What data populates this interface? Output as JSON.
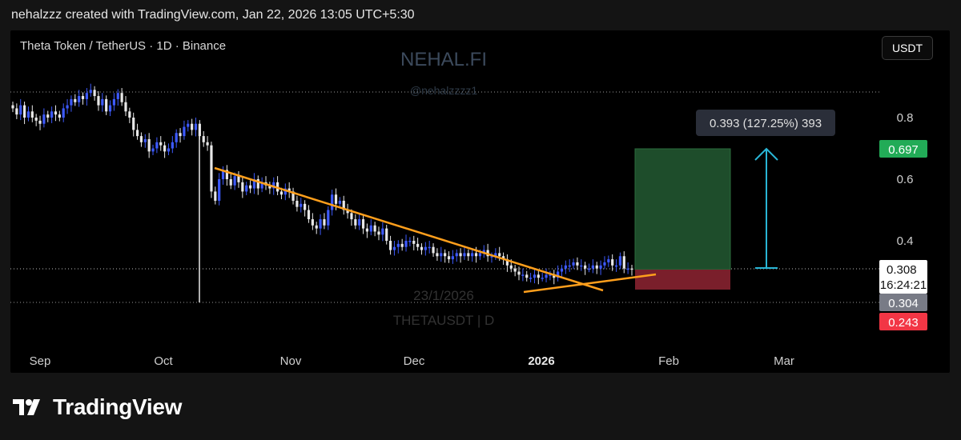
{
  "header": {
    "attribution": "nehalzzz created with TradingView.com, Jan 22, 2026 13:05 UTC+5:30"
  },
  "brand": {
    "name": "TradingView",
    "logo_icon": "tradingview-logo-icon"
  },
  "toolbar": {
    "currency_label": "USDT"
  },
  "colors": {
    "background": "#000000",
    "candle_up": "#3d5afe",
    "candle_down": "#e8e8e8",
    "trendline": "#ff9f1c",
    "profit_zone": "#1e4d2b",
    "loss_zone": "#7a1f2b",
    "target_arrow": "#29b6d6",
    "label_green": "#22ab57",
    "label_red": "#f23645",
    "label_gray": "#787b86"
  },
  "chart_data": {
    "type": "candlestick",
    "title": "Theta Token / TetherUS · 1D · Binance",
    "symbol": "THETAUSDT",
    "interval": "D",
    "watermark": {
      "title": "NEHAL.FI",
      "subtitle": "@nehalzzzz1",
      "date": "23/1/2026",
      "symbol": "THETAUSDT | D"
    },
    "x_ticks": [
      {
        "label": "Sep",
        "bold": false
      },
      {
        "label": "Oct",
        "bold": false
      },
      {
        "label": "Nov",
        "bold": false
      },
      {
        "label": "Dec",
        "bold": false
      },
      {
        "label": "2026",
        "bold": true
      },
      {
        "label": "Feb",
        "bold": false
      },
      {
        "label": "Mar",
        "bold": false
      }
    ],
    "y_ticks": [
      0.8,
      0.6,
      0.4
    ],
    "price_labels": {
      "take_profit": "0.697",
      "current": "0.308",
      "countdown": "16:24:21",
      "entry": "0.304",
      "stop_loss": "0.243"
    },
    "measure": {
      "text": "0.393 (127.25%) 393",
      "from": 0.304,
      "to": 0.697
    },
    "closes": [
      0.83,
      0.81,
      0.84,
      0.8,
      0.82,
      0.8,
      0.79,
      0.78,
      0.81,
      0.8,
      0.82,
      0.81,
      0.8,
      0.83,
      0.84,
      0.86,
      0.85,
      0.87,
      0.86,
      0.88,
      0.89,
      0.87,
      0.84,
      0.86,
      0.82,
      0.84,
      0.86,
      0.88,
      0.85,
      0.82,
      0.8,
      0.76,
      0.74,
      0.72,
      0.73,
      0.69,
      0.7,
      0.72,
      0.71,
      0.69,
      0.7,
      0.72,
      0.75,
      0.74,
      0.77,
      0.78,
      0.76,
      0.78,
      0.74,
      0.72,
      0.71,
      0.56,
      0.53,
      0.6,
      0.63,
      0.6,
      0.58,
      0.61,
      0.59,
      0.56,
      0.58,
      0.57,
      0.6,
      0.57,
      0.59,
      0.58,
      0.57,
      0.59,
      0.56,
      0.55,
      0.57,
      0.56,
      0.53,
      0.51,
      0.52,
      0.5,
      0.47,
      0.45,
      0.44,
      0.47,
      0.45,
      0.5,
      0.55,
      0.52,
      0.53,
      0.5,
      0.49,
      0.47,
      0.45,
      0.47,
      0.44,
      0.43,
      0.45,
      0.43,
      0.42,
      0.44,
      0.4,
      0.37,
      0.38,
      0.39,
      0.38,
      0.4,
      0.4,
      0.39,
      0.38,
      0.37,
      0.38,
      0.38,
      0.36,
      0.35,
      0.36,
      0.35,
      0.34,
      0.35,
      0.36,
      0.35,
      0.36,
      0.35,
      0.36,
      0.35,
      0.36,
      0.37,
      0.35,
      0.35,
      0.36,
      0.35,
      0.34,
      0.32,
      0.31,
      0.3,
      0.29,
      0.29,
      0.28,
      0.28,
      0.29,
      0.28,
      0.28,
      0.29,
      0.29,
      0.28,
      0.3,
      0.31,
      0.32,
      0.32,
      0.33,
      0.32,
      0.32,
      0.31,
      0.31,
      0.32,
      0.31,
      0.32,
      0.33,
      0.34,
      0.32,
      0.32,
      0.35,
      0.31,
      0.31,
      0.308
    ]
  }
}
